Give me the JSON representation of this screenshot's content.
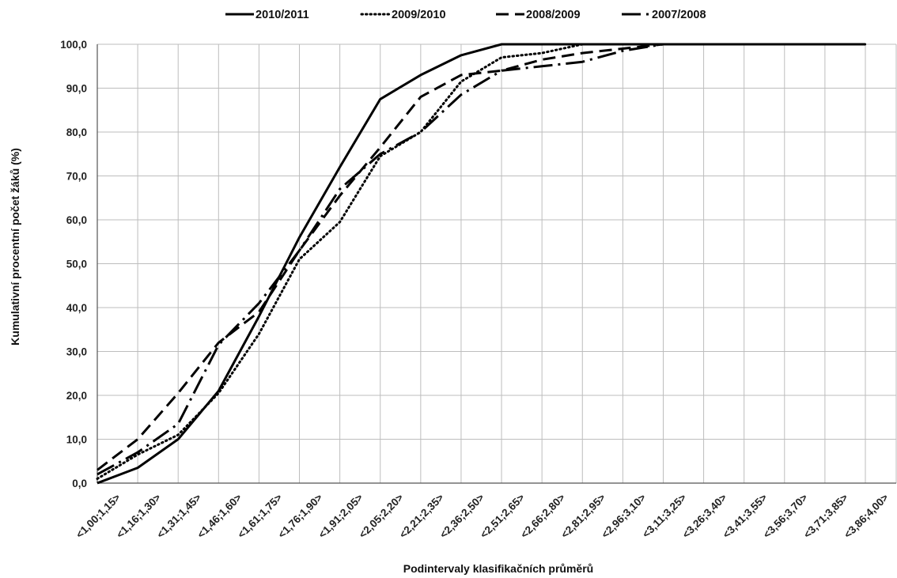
{
  "chart_data": {
    "type": "line",
    "title": "",
    "xlabel": "Podintervaly klasifikačních průměrů",
    "ylabel": "Kumulativní procentní počet  žáků (%)",
    "ylim": [
      0,
      100
    ],
    "ytick_step": 10,
    "ytick_labels": [
      "0,0",
      "10,0",
      "20,0",
      "30,0",
      "40,0",
      "50,0",
      "60,0",
      "70,0",
      "80,0",
      "90,0",
      "100,0"
    ],
    "grid": true,
    "legend_position": "top",
    "line_color": "#000000",
    "categories": [
      "<1,00;1,15>",
      "<1,16;1,30>",
      "<1,31;1,45>",
      "<1,46;1,60>",
      "<1,61;1,75>",
      "<1,76;1,90>",
      "<1,91;2,05>",
      "<2,05;2,20>",
      "<2,21;2,35>",
      "<2,36;2,50>",
      "<2,51;2,65>",
      "<2,66;2,80>",
      "<2,81;2,95>",
      "<2,96;3,10>",
      "<3,11;3,25>",
      "<3,26;3,40>",
      "<3,41;3,55>",
      "<3,56;3,70>",
      "<3,71;3,85>",
      "<3,86;4,00>"
    ],
    "series": [
      {
        "name": "2010/2011",
        "dash": "solid",
        "values": [
          0.0,
          3.5,
          10.0,
          21.0,
          38.0,
          56.0,
          72.0,
          87.5,
          93.0,
          97.5,
          100.0,
          100.0,
          100.0,
          100.0,
          100.0,
          100.0,
          100.0,
          100.0,
          100.0,
          100.0
        ]
      },
      {
        "name": "2009/2010",
        "dash": "dotted",
        "values": [
          1.0,
          6.5,
          11.0,
          20.5,
          34.0,
          51.0,
          59.5,
          74.5,
          80.0,
          91.5,
          97.0,
          98.0,
          100.0,
          100.0,
          100.0,
          100.0,
          100.0,
          100.0,
          100.0,
          100.0
        ]
      },
      {
        "name": "2008/2009",
        "dash": "dashed",
        "values": [
          3.0,
          10.0,
          20.5,
          32.0,
          39.0,
          53.0,
          65.5,
          76.5,
          88.0,
          93.0,
          94.0,
          96.5,
          98.0,
          99.0,
          100.0,
          100.0,
          100.0,
          100.0,
          100.0,
          100.0
        ]
      },
      {
        "name": "2007/2008",
        "dash": "dashdot",
        "values": [
          2.0,
          7.0,
          13.5,
          31.5,
          41.0,
          53.0,
          67.0,
          75.0,
          80.0,
          88.5,
          94.0,
          95.0,
          96.0,
          98.5,
          100.0,
          100.0,
          100.0,
          100.0,
          100.0,
          100.0
        ]
      }
    ]
  }
}
